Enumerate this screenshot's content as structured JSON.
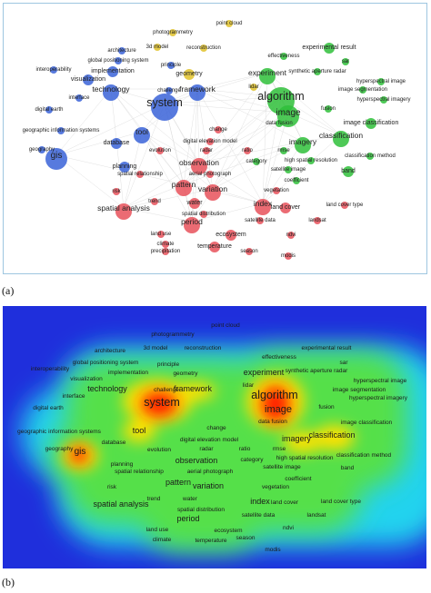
{
  "captions": {
    "a": "(a)",
    "b": "(b)"
  },
  "colors": {
    "blue": "#3a63d8",
    "green": "#2fbf3a",
    "red": "#e8515a",
    "yellow": "#e0c22a",
    "heat_bg": "#1f2fdc",
    "heat_low": "#22d3ee",
    "heat_mid": "#54e04a",
    "heat_high": "#ffe100",
    "heat_peak": "#ff1a00"
  },
  "panel_a": {
    "clusters": [
      {
        "name": "blue",
        "color": "#3a63d8"
      },
      {
        "name": "green",
        "color": "#2fbf3a"
      },
      {
        "name": "red",
        "color": "#e8515a"
      },
      {
        "name": "yellow",
        "color": "#e0c22a"
      }
    ],
    "terms": [
      {
        "label": "point cloud",
        "cluster": "yellow",
        "size": 1
      },
      {
        "label": "photogrammetry",
        "cluster": "yellow",
        "size": 1
      },
      {
        "label": "3d model",
        "cluster": "yellow",
        "size": 1
      },
      {
        "label": "reconstruction",
        "cluster": "yellow",
        "size": 1
      },
      {
        "label": "architecture",
        "cluster": "blue",
        "size": 1
      },
      {
        "label": "global positioning system",
        "cluster": "blue",
        "size": 1
      },
      {
        "label": "principle",
        "cluster": "blue",
        "size": 1
      },
      {
        "label": "implementation",
        "cluster": "blue",
        "size": 2
      },
      {
        "label": "geometry",
        "cluster": "yellow",
        "size": 2
      },
      {
        "label": "interoperability",
        "cluster": "blue",
        "size": 1
      },
      {
        "label": "visualization",
        "cluster": "blue",
        "size": 2
      },
      {
        "label": "technology",
        "cluster": "blue",
        "size": 3
      },
      {
        "label": "challenge",
        "cluster": "blue",
        "size": 1
      },
      {
        "label": "framework",
        "cluster": "blue",
        "size": 3
      },
      {
        "label": "interface",
        "cluster": "blue",
        "size": 1
      },
      {
        "label": "digital earth",
        "cluster": "blue",
        "size": 1
      },
      {
        "label": "system",
        "cluster": "blue",
        "size": 5
      },
      {
        "label": "geographic information systems",
        "cluster": "blue",
        "size": 1
      },
      {
        "label": "tool",
        "cluster": "blue",
        "size": 3
      },
      {
        "label": "database",
        "cluster": "blue",
        "size": 2
      },
      {
        "label": "gis",
        "cluster": "blue",
        "size": 4
      },
      {
        "label": "geography",
        "cluster": "blue",
        "size": 1
      },
      {
        "label": "planning",
        "cluster": "blue",
        "size": 2
      },
      {
        "label": "risk",
        "cluster": "red",
        "size": 1
      },
      {
        "label": "digital elevation model",
        "cluster": "red",
        "size": 1
      },
      {
        "label": "evolution",
        "cluster": "red",
        "size": 1
      },
      {
        "label": "radar",
        "cluster": "red",
        "size": 1
      },
      {
        "label": "observation",
        "cluster": "red",
        "size": 3
      },
      {
        "label": "spatial relationship",
        "cluster": "red",
        "size": 1
      },
      {
        "label": "aerial photograph",
        "cluster": "red",
        "size": 1
      },
      {
        "label": "pattern",
        "cluster": "red",
        "size": 3
      },
      {
        "label": "variation",
        "cluster": "red",
        "size": 3
      },
      {
        "label": "trend",
        "cluster": "red",
        "size": 1
      },
      {
        "label": "spatial analysis",
        "cluster": "red",
        "size": 3
      },
      {
        "label": "water",
        "cluster": "red",
        "size": 2
      },
      {
        "label": "spatial distribution",
        "cluster": "red",
        "size": 1
      },
      {
        "label": "period",
        "cluster": "red",
        "size": 3
      },
      {
        "label": "land use",
        "cluster": "red",
        "size": 1
      },
      {
        "label": "climate",
        "cluster": "red",
        "size": 1
      },
      {
        "label": "ecosystem",
        "cluster": "red",
        "size": 2
      },
      {
        "label": "temperature",
        "cluster": "red",
        "size": 2
      },
      {
        "label": "precipitation",
        "cluster": "red",
        "size": 1
      },
      {
        "label": "index",
        "cluster": "red",
        "size": 3
      },
      {
        "label": "land cover",
        "cluster": "red",
        "size": 2
      },
      {
        "label": "satellite data",
        "cluster": "red",
        "size": 1
      },
      {
        "label": "ndvi",
        "cluster": "red",
        "size": 1
      },
      {
        "label": "landsat",
        "cluster": "red",
        "size": 1
      },
      {
        "label": "modis",
        "cluster": "red",
        "size": 1
      },
      {
        "label": "season",
        "cluster": "red",
        "size": 1
      },
      {
        "label": "ratio",
        "cluster": "red",
        "size": 1
      },
      {
        "label": "category",
        "cluster": "green",
        "size": 1
      },
      {
        "label": "rmse",
        "cluster": "green",
        "size": 1
      },
      {
        "label": "coefficient",
        "cluster": "green",
        "size": 1
      },
      {
        "label": "vegetation",
        "cluster": "red",
        "size": 1
      },
      {
        "label": "land cover type",
        "cluster": "red",
        "size": 1
      },
      {
        "label": "effectiveness",
        "cluster": "green",
        "size": 1
      },
      {
        "label": "experimental result",
        "cluster": "green",
        "size": 2
      },
      {
        "label": "sar",
        "cluster": "green",
        "size": 1
      },
      {
        "label": "experiment",
        "cluster": "green",
        "size": 3
      },
      {
        "label": "synthetic aperture radar",
        "cluster": "green",
        "size": 1
      },
      {
        "label": "hyperspectral image",
        "cluster": "green",
        "size": 1
      },
      {
        "label": "lidar",
        "cluster": "yellow",
        "size": 1
      },
      {
        "label": "algorithm",
        "cluster": "green",
        "size": 5
      },
      {
        "label": "image segmentation",
        "cluster": "green",
        "size": 1
      },
      {
        "label": "hyperspectral imagery",
        "cluster": "green",
        "size": 1
      },
      {
        "label": "image",
        "cluster": "green",
        "size": 4
      },
      {
        "label": "data fusion",
        "cluster": "green",
        "size": 1
      },
      {
        "label": "fusion",
        "cluster": "green",
        "size": 1
      },
      {
        "label": "image classification",
        "cluster": "green",
        "size": 2
      },
      {
        "label": "classification",
        "cluster": "green",
        "size": 3
      },
      {
        "label": "imagery",
        "cluster": "green",
        "size": 3
      },
      {
        "label": "satellite image",
        "cluster": "green",
        "size": 1
      },
      {
        "label": "band",
        "cluster": "green",
        "size": 2
      },
      {
        "label": "classification method",
        "cluster": "green",
        "size": 1
      },
      {
        "label": "high spatial resolution",
        "cluster": "green",
        "size": 1
      },
      {
        "label": "change",
        "cluster": "red",
        "size": 1
      }
    ]
  },
  "panel_b": {
    "terms": [
      "point cloud",
      "photogrammetry",
      "3d model",
      "reconstruction",
      "architecture",
      "global positioning system",
      "principle",
      "implementation",
      "geometry",
      "interoperability",
      "visualization",
      "technology",
      "challenge",
      "framework",
      "interface",
      "system",
      "geographic information systems",
      "tool",
      "database",
      "gis",
      "geography",
      "planning",
      "risk",
      "digital elevation model",
      "evolution",
      "radar",
      "observation",
      "spatial relationship",
      "aerial photograph",
      "pattern",
      "variation",
      "trend",
      "spatial analysis",
      "water",
      "spatial distribution",
      "period",
      "land use",
      "climate",
      "ecosystem",
      "temperature",
      "season",
      "index",
      "land cover",
      "satellite data",
      "ndvi",
      "landsat",
      "modis",
      "ratio",
      "category",
      "rmse",
      "high spatial resolution",
      "coefficient",
      "vegetation",
      "land cover type",
      "effectiveness",
      "experimental result",
      "sar",
      "experiment",
      "synthetic aperture radar",
      "hyperspectral image",
      "lidar",
      "algorithm",
      "image segmentation",
      "hyperspectral imagery",
      "image",
      "data fusion",
      "fusion",
      "image classification",
      "classification",
      "imagery",
      "satellite image",
      "band",
      "classification method",
      "change",
      "digital earth"
    ]
  }
}
